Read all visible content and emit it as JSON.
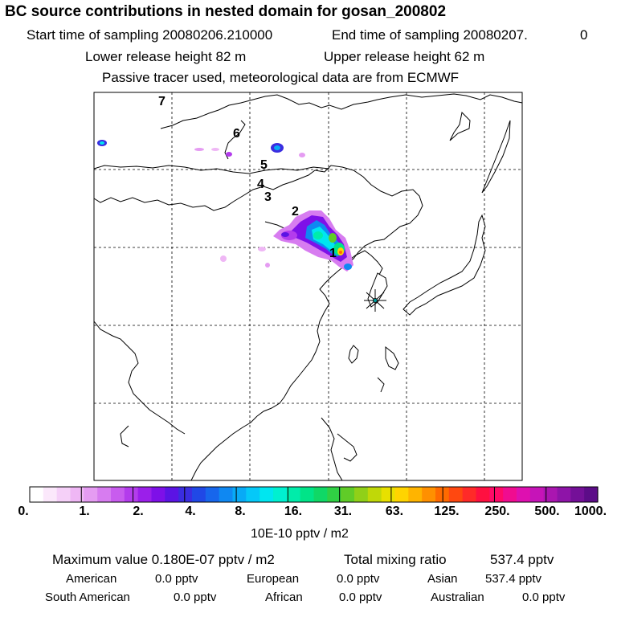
{
  "header": {
    "title": "BC  source contributions in nested domain for gosan_200802",
    "start_label": "Start time of sampling 20080206.210000",
    "end_label": "End time of sampling 20080207.",
    "end_suffix": "0",
    "lower_release": "Lower release height   82 m",
    "upper_release": "Upper release height   62 m",
    "tracer_note": "Passive tracer used, meteorological data are from ECMWF"
  },
  "map": {
    "trajectory_markers": [
      "1",
      "2",
      "3",
      "4",
      "5",
      "6",
      "7"
    ],
    "receptor_symbol": "gosan-receptor-star"
  },
  "colorbar": {
    "tick_labels": [
      "0.",
      "1.",
      "2.",
      "4.",
      "8.",
      "16.",
      "31.",
      "63.",
      "125.",
      "250.",
      "500.",
      "1000."
    ],
    "unit_label": "10E-10 pptv / m2",
    "colors": [
      "#ffffff",
      "#fbe8fb",
      "#f5d0f8",
      "#efb7f5",
      "#e59cf2",
      "#d77cf0",
      "#c85cee",
      "#b33cec",
      "#9b1fea",
      "#7e10e8",
      "#5b14e4",
      "#3a2de0",
      "#2048e6",
      "#1766ec",
      "#0f88f2",
      "#08aaf6",
      "#05c8f8",
      "#00e6f0",
      "#00f0d0",
      "#00ecaa",
      "#00e488",
      "#10d866",
      "#30d044",
      "#60cc28",
      "#90d018",
      "#c0d808",
      "#e8e000",
      "#ffd400",
      "#ffb400",
      "#ff9000",
      "#ff6a00",
      "#ff4810",
      "#ff2a28",
      "#ff1040",
      "#ff0a68",
      "#f00c90",
      "#de10b0",
      "#c614b8",
      "#aa16b0",
      "#8e14a8",
      "#741098",
      "#5c0c88"
    ]
  },
  "stats": {
    "maximum": "Maximum value  0.180E-07 pptv / m2",
    "total": "Total mixing ratio",
    "total_value": "537.4 pptv",
    "american_label": "American",
    "american_value": "0.0 pptv",
    "european_label": "European",
    "european_value": "0.0 pptv",
    "asian_label": "Asian",
    "asian_value": "537.4 pptv",
    "south_american_label": "South American",
    "south_american_value": "0.0 pptv",
    "african_label": "African",
    "african_value": "0.0 pptv",
    "australian_label": "Australian",
    "australian_value": "0.0 pptv"
  }
}
